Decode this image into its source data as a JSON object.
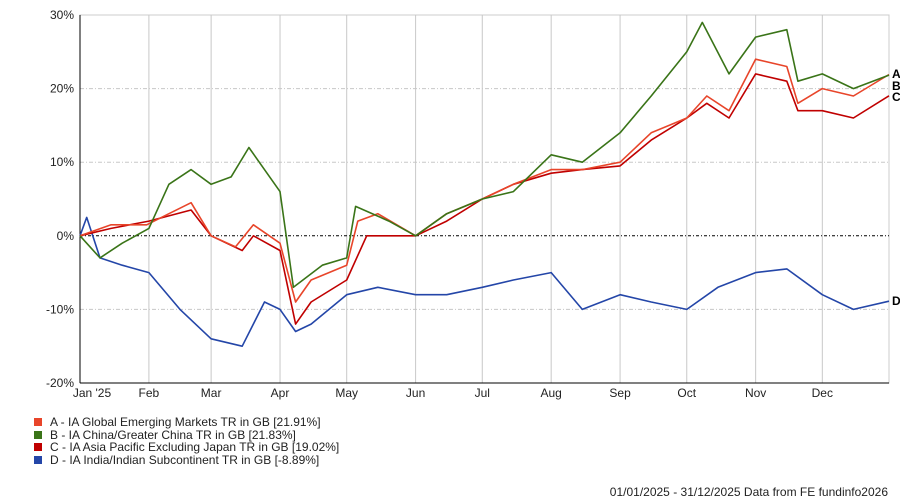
{
  "chart_data": {
    "type": "line",
    "title": "",
    "xlabel": "",
    "ylabel": "",
    "ylim": [
      -20,
      30
    ],
    "yticks": [
      -20,
      -10,
      0,
      10,
      20,
      30
    ],
    "ytick_labels": [
      "-20%",
      "-10%",
      "0%",
      "10%",
      "20%",
      "30%"
    ],
    "xlim": [
      "2025-01-01",
      "2025-12-31"
    ],
    "xticks": [
      "2025-01-01",
      "2025-02-01",
      "2025-03-01",
      "2025-04-01",
      "2025-05-01",
      "2025-06-01",
      "2025-07-01",
      "2025-08-01",
      "2025-09-01",
      "2025-10-01",
      "2025-11-01",
      "2025-12-01"
    ],
    "xtick_labels": [
      "Jan '25",
      "Feb",
      "Mar",
      "Apr",
      "May",
      "Jun",
      "Jul",
      "Aug",
      "Sep",
      "Oct",
      "Nov",
      "Dec"
    ],
    "grid": true,
    "legend_position": "bottom-left",
    "series": [
      {
        "key": "A",
        "name": "A - IA Global Emerging Markets TR in GB [21.91%]",
        "color": "#e8452a",
        "x": [
          "2025-01-01",
          "2025-01-15",
          "2025-01-31",
          "2025-02-10",
          "2025-02-20",
          "2025-03-01",
          "2025-03-12",
          "2025-03-20",
          "2025-04-01",
          "2025-04-08",
          "2025-04-15",
          "2025-05-01",
          "2025-05-06",
          "2025-05-15",
          "2025-06-01",
          "2025-06-15",
          "2025-07-01",
          "2025-07-15",
          "2025-08-01",
          "2025-08-15",
          "2025-09-01",
          "2025-09-15",
          "2025-10-01",
          "2025-10-10",
          "2025-10-20",
          "2025-11-01",
          "2025-11-15",
          "2025-11-20",
          "2025-12-01",
          "2025-12-15",
          "2025-12-31"
        ],
        "y": [
          0,
          1.5,
          1.5,
          3,
          4.5,
          0,
          -1.5,
          1.5,
          -1,
          -9,
          -6,
          -4,
          2,
          3,
          0,
          3,
          5,
          7,
          9,
          9,
          10,
          14,
          16,
          19,
          17,
          24,
          23,
          18,
          20,
          19,
          21.91
        ]
      },
      {
        "key": "B",
        "name": "B - IA China/Greater China TR in GB [21.83%]",
        "color": "#3a7418",
        "x": [
          "2025-01-01",
          "2025-01-10",
          "2025-01-20",
          "2025-02-01",
          "2025-02-10",
          "2025-02-20",
          "2025-03-01",
          "2025-03-10",
          "2025-03-18",
          "2025-04-01",
          "2025-04-07",
          "2025-04-20",
          "2025-05-01",
          "2025-05-05",
          "2025-05-20",
          "2025-06-01",
          "2025-06-15",
          "2025-07-01",
          "2025-07-15",
          "2025-08-01",
          "2025-08-15",
          "2025-09-01",
          "2025-09-15",
          "2025-10-01",
          "2025-10-08",
          "2025-10-20",
          "2025-11-01",
          "2025-11-15",
          "2025-11-20",
          "2025-12-01",
          "2025-12-15",
          "2025-12-31"
        ],
        "y": [
          0,
          -3,
          -1,
          1,
          7,
          9,
          7,
          8,
          12,
          6,
          -7,
          -4,
          -3,
          4,
          2,
          0,
          3,
          5,
          6,
          11,
          10,
          14,
          19,
          25,
          29,
          22,
          27,
          28,
          21,
          22,
          20,
          21.83
        ]
      },
      {
        "key": "C",
        "name": "C - IA Asia Pacific Excluding Japan TR in GB [19.02%]",
        "color": "#c00000",
        "x": [
          "2025-01-01",
          "2025-01-15",
          "2025-02-01",
          "2025-02-20",
          "2025-03-01",
          "2025-03-15",
          "2025-03-20",
          "2025-04-01",
          "2025-04-08",
          "2025-04-15",
          "2025-05-01",
          "2025-05-10",
          "2025-06-01",
          "2025-06-15",
          "2025-07-01",
          "2025-07-15",
          "2025-08-01",
          "2025-08-15",
          "2025-09-01",
          "2025-09-15",
          "2025-10-01",
          "2025-10-10",
          "2025-10-20",
          "2025-11-01",
          "2025-11-15",
          "2025-11-20",
          "2025-12-01",
          "2025-12-15",
          "2025-12-31"
        ],
        "y": [
          0,
          1,
          2,
          3.5,
          0,
          -2,
          0,
          -2,
          -12,
          -9,
          -6,
          0,
          0,
          2,
          5,
          7,
          8.5,
          9,
          9.5,
          13,
          16,
          18,
          16,
          22,
          21,
          17,
          17,
          16,
          19.02
        ]
      },
      {
        "key": "D",
        "name": "D - IA India/Indian Subcontinent TR in GB [-8.89%]",
        "color": "#2446a8",
        "x": [
          "2025-01-01",
          "2025-01-04",
          "2025-01-10",
          "2025-01-20",
          "2025-02-01",
          "2025-02-15",
          "2025-03-01",
          "2025-03-15",
          "2025-03-25",
          "2025-04-01",
          "2025-04-08",
          "2025-04-15",
          "2025-05-01",
          "2025-05-15",
          "2025-06-01",
          "2025-06-15",
          "2025-07-01",
          "2025-07-15",
          "2025-08-01",
          "2025-08-15",
          "2025-09-01",
          "2025-09-15",
          "2025-10-01",
          "2025-10-15",
          "2025-11-01",
          "2025-11-15",
          "2025-12-01",
          "2025-12-15",
          "2025-12-31"
        ],
        "y": [
          0,
          2.5,
          -3,
          -4,
          -5,
          -10,
          -14,
          -15,
          -9,
          -10,
          -13,
          -12,
          -8,
          -7,
          -8,
          -8,
          -7,
          -6,
          -5,
          -10,
          -8,
          -9,
          -10,
          -7,
          -5,
          -4.5,
          -8,
          -10,
          -8.89
        ]
      }
    ]
  },
  "footer": "01/01/2025 - 31/12/2025 Data from FE fundinfo2026"
}
